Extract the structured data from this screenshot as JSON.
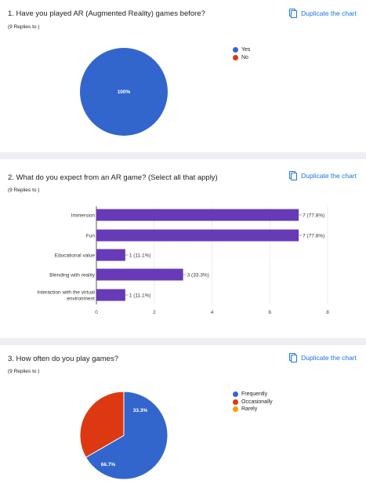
{
  "colors": {
    "blue": "#3366cc",
    "red": "#dc3912",
    "orange": "#ff9900",
    "purple": "#673ab7",
    "link": "#1a73e8"
  },
  "duplicate_label": "Duplicate the chart",
  "questions": [
    {
      "title": "1. Have you played AR (Augmented Reality) games before?",
      "replies": "(9 Replies to )",
      "legend": [
        "Yes",
        "No"
      ]
    },
    {
      "title": "2. What do you expect from an AR game? (Select all that apply)",
      "replies": "(9 Replies to )"
    },
    {
      "title": "3. How often do you play games?",
      "replies": "(9 Replies to )",
      "legend": [
        "Frequently",
        "Occasionally",
        "Rarely"
      ]
    }
  ],
  "chart_data": [
    {
      "type": "pie",
      "labels": [
        "Yes",
        "No"
      ],
      "values": [
        9,
        0
      ],
      "slice_labels": [
        "100%",
        ""
      ],
      "legend_position": "right"
    },
    {
      "type": "bar",
      "orientation": "horizontal",
      "categories": [
        "Immersion",
        "Fun",
        "Educational value",
        "Blending with reality",
        "Interaction with the virtual environment"
      ],
      "category_lines": [
        [
          "Immersion"
        ],
        [
          "Fun"
        ],
        [
          "Educational value"
        ],
        [
          "Blending with reality"
        ],
        [
          "Interaction with the virtual",
          "environment"
        ]
      ],
      "values": [
        7,
        7,
        1,
        3,
        1
      ],
      "data_labels": [
        "7 (77.8%)",
        "7 (77.8%)",
        "1 (11.1%)",
        "3 (33.3%)",
        "1 (11.1%)"
      ],
      "xlim": [
        0,
        8
      ],
      "xticks": [
        0,
        2,
        4,
        6,
        8
      ],
      "grid": true
    },
    {
      "type": "pie",
      "labels": [
        "Frequently",
        "Occasionally",
        "Rarely"
      ],
      "values": [
        6,
        3,
        0
      ],
      "slice_labels": [
        "66.7%",
        "33.3%",
        ""
      ],
      "legend_position": "right"
    }
  ]
}
